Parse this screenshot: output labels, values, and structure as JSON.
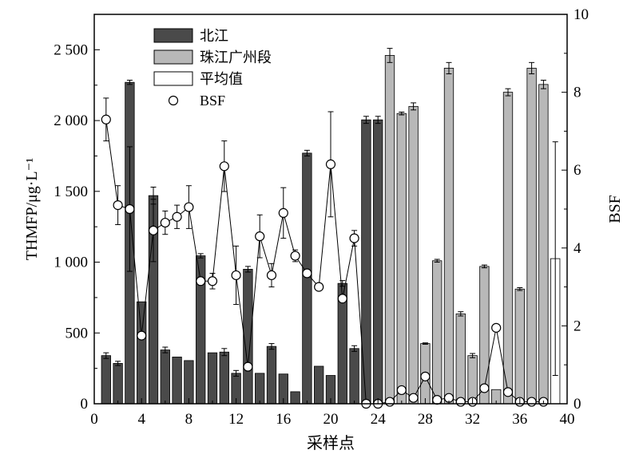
{
  "chart_data": {
    "type": "bar",
    "title": "",
    "xlabel": "采样点",
    "ylabel_left": "THMFP/μg·L⁻¹",
    "ylabel_right": "BSF",
    "xlim": [
      0,
      40
    ],
    "ylim_left": [
      0,
      2750
    ],
    "ylim_right": [
      0,
      10
    ],
    "x_ticks": [
      "0",
      "4",
      "8",
      "12",
      "16",
      "20",
      "24",
      "28",
      "32",
      "36",
      "40"
    ],
    "y_left_ticks": [
      "0",
      "500",
      "1 000",
      "1 500",
      "2 000",
      "2 500"
    ],
    "y_right_ticks": [
      "0",
      "2",
      "4",
      "6",
      "8",
      "10"
    ],
    "grid": false,
    "legend_placement": "top-left",
    "legend": [
      {
        "label": "北江",
        "kind": "bar",
        "color": "#4a4a4a"
      },
      {
        "label": "珠江广州段",
        "kind": "bar",
        "color": "#b8b8b8"
      },
      {
        "label": "平均值",
        "kind": "bar",
        "color": "#ffffff"
      },
      {
        "label": "BSF",
        "kind": "marker",
        "color": "#ffffff"
      }
    ],
    "series": [
      {
        "name": "北江",
        "axis": "left",
        "color": "#4a4a4a",
        "x": [
          1,
          2,
          3,
          4,
          5,
          6,
          7,
          8,
          9,
          10,
          11,
          12,
          13,
          14,
          15,
          16,
          17,
          18,
          19,
          20,
          21,
          22,
          23,
          24
        ],
        "values": [
          340,
          285,
          2270,
          720,
          1470,
          380,
          330,
          305,
          1045,
          360,
          365,
          215,
          950,
          215,
          405,
          210,
          85,
          1770,
          265,
          200,
          850,
          390,
          2005,
          2005
        ],
        "errors": [
          20,
          15,
          15,
          0,
          60,
          20,
          0,
          0,
          15,
          0,
          25,
          20,
          20,
          0,
          20,
          0,
          0,
          20,
          0,
          0,
          20,
          20,
          25,
          25
        ]
      },
      {
        "name": "珠江广州段",
        "axis": "left",
        "color": "#b8b8b8",
        "x": [
          25,
          26,
          27,
          28,
          29,
          30,
          31,
          32,
          33,
          34,
          35,
          36,
          37,
          38
        ],
        "values": [
          2460,
          2050,
          2100,
          425,
          1010,
          2370,
          635,
          340,
          970,
          100,
          2200,
          810,
          2370,
          2255
        ],
        "errors": [
          50,
          10,
          25,
          5,
          10,
          40,
          15,
          15,
          10,
          0,
          25,
          10,
          40,
          30
        ]
      },
      {
        "name": "平均值",
        "axis": "left",
        "color": "#ffffff",
        "x": [
          39
        ],
        "values": [
          1025
        ],
        "errors": [
          0
        ],
        "range": [
          200,
          1850
        ]
      },
      {
        "name": "BSF",
        "axis": "right",
        "kind": "line",
        "x": [
          1,
          2,
          3,
          4,
          5,
          6,
          7,
          8,
          9,
          10,
          11,
          12,
          13,
          14,
          15,
          16,
          17,
          18,
          19,
          20,
          21,
          22,
          23,
          24,
          25,
          26,
          27,
          28,
          29,
          30,
          31,
          32,
          33,
          34,
          35,
          36,
          37,
          38
        ],
        "values": [
          7.3,
          5.1,
          5.0,
          1.75,
          4.45,
          4.65,
          4.8,
          5.05,
          3.15,
          3.15,
          6.1,
          3.3,
          0.95,
          4.3,
          3.3,
          4.9,
          3.8,
          3.35,
          3.0,
          6.15,
          2.7,
          4.25,
          0.0,
          0.0,
          0.05,
          0.35,
          0.15,
          0.7,
          0.1,
          0.15,
          0.05,
          0.05,
          0.4,
          1.95,
          0.3,
          0.05,
          0.05,
          0.05
        ],
        "errors": [
          0.55,
          0.5,
          1.6,
          0.0,
          0.8,
          0.3,
          0.3,
          0.55,
          0.0,
          0.2,
          0.65,
          0.75,
          0.0,
          0.55,
          0.3,
          0.65,
          0.15,
          0.0,
          0.0,
          1.35,
          0.0,
          0.2,
          0.0,
          0.0,
          0.0,
          0.0,
          0.0,
          0.0,
          0.0,
          0.0,
          0.0,
          0.0,
          0.0,
          0.0,
          0.0,
          0.0,
          0.0,
          0.0
        ]
      }
    ]
  }
}
